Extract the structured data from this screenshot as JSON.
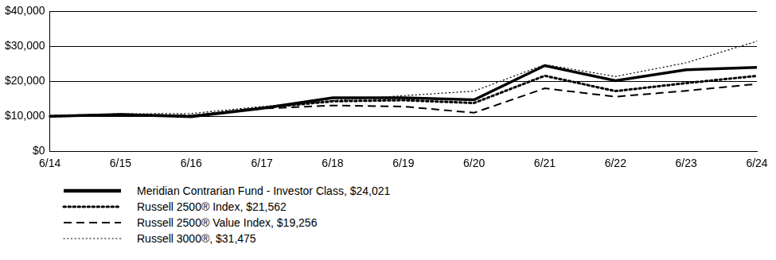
{
  "chart_data": {
    "type": "line",
    "categories": [
      "6/14",
      "6/15",
      "6/16",
      "6/17",
      "6/18",
      "6/19",
      "6/20",
      "6/21",
      "6/22",
      "6/23",
      "6/24"
    ],
    "series": [
      {
        "name": "Meridian Contrarian Fund - Investor Class, $24,021",
        "color": "#000000",
        "line_style": "solid",
        "values": [
          10000,
          10500,
          9900,
          12300,
          15300,
          15300,
          14700,
          24500,
          20200,
          23300,
          24021
        ]
      },
      {
        "name": "Russell 2500® Index, $21,562",
        "color": "#000000",
        "line_style": "dotted",
        "values": [
          10000,
          10500,
          10100,
          12400,
          14300,
          14600,
          13800,
          21600,
          17200,
          19500,
          21562
        ]
      },
      {
        "name": "Russell 2500® Value Index, $19,256",
        "color": "#000000",
        "line_style": "dashed",
        "values": [
          10000,
          10300,
          10200,
          12200,
          13100,
          12800,
          11000,
          18000,
          15600,
          17300,
          19256
        ]
      },
      {
        "name": "Russell 3000®, $31,475",
        "color": "#000000",
        "line_style": "dotted",
        "values": [
          10000,
          10700,
          10800,
          12800,
          14500,
          15900,
          17200,
          24800,
          21400,
          25300,
          31475
        ]
      }
    ],
    "ylim": [
      0,
      40000
    ],
    "yticks": [
      {
        "value": 0,
        "label": "$0"
      },
      {
        "value": 10000,
        "label": "$10,000"
      },
      {
        "value": 20000,
        "label": "$20,000"
      },
      {
        "value": 30000,
        "label": "$30,000"
      },
      {
        "value": 40000,
        "label": "$40,000"
      }
    ],
    "grid": true,
    "legend": "bottom"
  }
}
